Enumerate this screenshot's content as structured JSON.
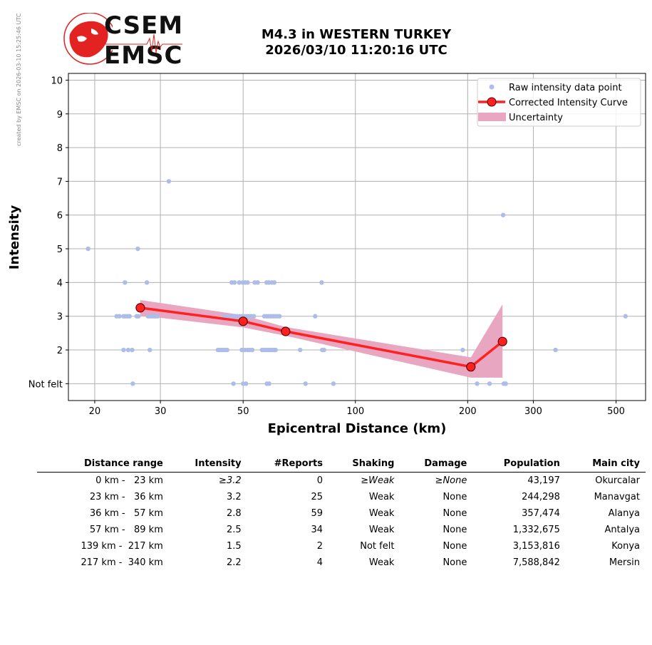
{
  "side_note": "created by EMSC on 2026-03-10 15:25:46 UTC",
  "logo": {
    "line1": "CSEM",
    "line2": "EMSC"
  },
  "title_line1": "M4.3 in WESTERN TURKEY",
  "title_line2": "2026/03/10 11:20:16 UTC",
  "colors": {
    "raw": "#aebde8",
    "curve": "#ff2020",
    "marker_edge": "#5a0000",
    "uncertainty": "#e8a6c0",
    "grid": "#b0b0b0",
    "logo_red": "#e32222"
  },
  "chart_data": {
    "type": "scatter",
    "xlabel": "Epicentral Distance (km)",
    "ylabel": "Intensity",
    "xscale": "log",
    "xlim": [
      17,
      600
    ],
    "ylim": [
      0.5,
      10.2
    ],
    "xticks": [
      20,
      30,
      50,
      100,
      200,
      300,
      500
    ],
    "yticks": [
      {
        "value": 1,
        "label": "Not felt"
      },
      {
        "value": 2,
        "label": "2"
      },
      {
        "value": 3,
        "label": "3"
      },
      {
        "value": 4,
        "label": "4"
      },
      {
        "value": 5,
        "label": "5"
      },
      {
        "value": 6,
        "label": "6"
      },
      {
        "value": 7,
        "label": "7"
      },
      {
        "value": 8,
        "label": "8"
      },
      {
        "value": 9,
        "label": "9"
      },
      {
        "value": 10,
        "label": "10"
      }
    ],
    "grid": true,
    "legend_position": "top-right",
    "legend": [
      {
        "key": "raw",
        "label": "Raw intensity data point"
      },
      {
        "key": "curve",
        "label": "Corrected Intensity Curve"
      },
      {
        "key": "band",
        "label": "Uncertainty"
      }
    ],
    "raw_points": [
      [
        19.2,
        5
      ],
      [
        26.1,
        5
      ],
      [
        31.6,
        7
      ],
      [
        249,
        6
      ],
      [
        24.1,
        4
      ],
      [
        27.6,
        4
      ],
      [
        46.6,
        4
      ],
      [
        47.4,
        4
      ],
      [
        48.8,
        4
      ],
      [
        49.9,
        4
      ],
      [
        50.6,
        4
      ],
      [
        51.4,
        4
      ],
      [
        53.7,
        4
      ],
      [
        54.7,
        4
      ],
      [
        57.8,
        4
      ],
      [
        58.6,
        4
      ],
      [
        59.7,
        4
      ],
      [
        60.6,
        4
      ],
      [
        81.2,
        4
      ],
      [
        22.9,
        3
      ],
      [
        23.3,
        3
      ],
      [
        23.9,
        3
      ],
      [
        24.2,
        3
      ],
      [
        24.5,
        3
      ],
      [
        24.8,
        3
      ],
      [
        25.9,
        3
      ],
      [
        26.2,
        3
      ],
      [
        27.8,
        3
      ],
      [
        28.1,
        3
      ],
      [
        28.4,
        3
      ],
      [
        28.8,
        3
      ],
      [
        29.1,
        3
      ],
      [
        29.5,
        3
      ],
      [
        44.1,
        3
      ],
      [
        45.0,
        3
      ],
      [
        46.2,
        3
      ],
      [
        46.9,
        3
      ],
      [
        47.5,
        3
      ],
      [
        48.2,
        3
      ],
      [
        49.0,
        3
      ],
      [
        49.7,
        3
      ],
      [
        50.5,
        3
      ],
      [
        51.2,
        3
      ],
      [
        51.9,
        3
      ],
      [
        52.6,
        3
      ],
      [
        53.4,
        3
      ],
      [
        57.0,
        3
      ],
      [
        57.8,
        3
      ],
      [
        58.6,
        3
      ],
      [
        59.4,
        3
      ],
      [
        60.2,
        3
      ],
      [
        61.0,
        3
      ],
      [
        61.8,
        3
      ],
      [
        62.6,
        3
      ],
      [
        78.0,
        3
      ],
      [
        530,
        3
      ],
      [
        23.9,
        2
      ],
      [
        24.6,
        2
      ],
      [
        25.2,
        2
      ],
      [
        28.1,
        2
      ],
      [
        42.8,
        2
      ],
      [
        43.3,
        2
      ],
      [
        43.8,
        2
      ],
      [
        44.3,
        2
      ],
      [
        44.8,
        2
      ],
      [
        45.3,
        2
      ],
      [
        49.6,
        2
      ],
      [
        50.5,
        2
      ],
      [
        51.4,
        2
      ],
      [
        52.1,
        2
      ],
      [
        52.9,
        2
      ],
      [
        56.2,
        2
      ],
      [
        56.9,
        2
      ],
      [
        57.6,
        2
      ],
      [
        58.3,
        2
      ],
      [
        59.0,
        2
      ],
      [
        59.7,
        2
      ],
      [
        60.4,
        2
      ],
      [
        61.1,
        2
      ],
      [
        71.1,
        2
      ],
      [
        81.5,
        2
      ],
      [
        82.4,
        2
      ],
      [
        194,
        2
      ],
      [
        344,
        2
      ],
      [
        25.3,
        1
      ],
      [
        47.1,
        1
      ],
      [
        50.0,
        1
      ],
      [
        50.9,
        1
      ],
      [
        57.9,
        1
      ],
      [
        58.7,
        1
      ],
      [
        73.5,
        1
      ],
      [
        87.3,
        1
      ],
      [
        212,
        1
      ],
      [
        229,
        1
      ],
      [
        250,
        1
      ],
      [
        253,
        1
      ]
    ],
    "curve": [
      {
        "x": 26.5,
        "y": 3.25
      },
      {
        "x": 50,
        "y": 2.85
      },
      {
        "x": 65,
        "y": 2.55
      },
      {
        "x": 204,
        "y": 1.5
      },
      {
        "x": 248,
        "y": 2.25
      }
    ],
    "band_upper": [
      [
        26.5,
        3.48
      ],
      [
        50,
        3.03
      ],
      [
        65,
        2.68
      ],
      [
        204,
        1.78
      ],
      [
        248,
        3.35
      ]
    ],
    "band_lower": [
      [
        26.5,
        3.02
      ],
      [
        50,
        2.67
      ],
      [
        65,
        2.42
      ],
      [
        204,
        1.18
      ],
      [
        248,
        1.18
      ]
    ]
  },
  "table": {
    "headers": [
      "Distance range",
      "Intensity",
      "#Reports",
      "Shaking",
      "Damage",
      "Population",
      "Main city"
    ],
    "rows": [
      {
        "range": "0 km -   23 km",
        "intensity": "≥3.2",
        "reports": "0",
        "shaking": "≥Weak",
        "damage": "≥None",
        "population": "43,197",
        "city": "Okurcalar"
      },
      {
        "range": "23 km -   36 km",
        "intensity": "3.2",
        "reports": "25",
        "shaking": "Weak",
        "damage": "None",
        "population": "244,298",
        "city": "Manavgat"
      },
      {
        "range": "36 km -   57 km",
        "intensity": "2.8",
        "reports": "59",
        "shaking": "Weak",
        "damage": "None",
        "population": "357,474",
        "city": "Alanya"
      },
      {
        "range": "57 km -   89 km",
        "intensity": "2.5",
        "reports": "34",
        "shaking": "Weak",
        "damage": "None",
        "population": "1,332,675",
        "city": "Antalya"
      },
      {
        "range": "139 km -  217 km",
        "intensity": "1.5",
        "reports": "2",
        "shaking": "Not felt",
        "damage": "None",
        "population": "3,153,816",
        "city": "Konya"
      },
      {
        "range": "217 km -  340 km",
        "intensity": "2.2",
        "reports": "4",
        "shaking": "Weak",
        "damage": "None",
        "population": "7,588,842",
        "city": "Mersin"
      }
    ]
  }
}
